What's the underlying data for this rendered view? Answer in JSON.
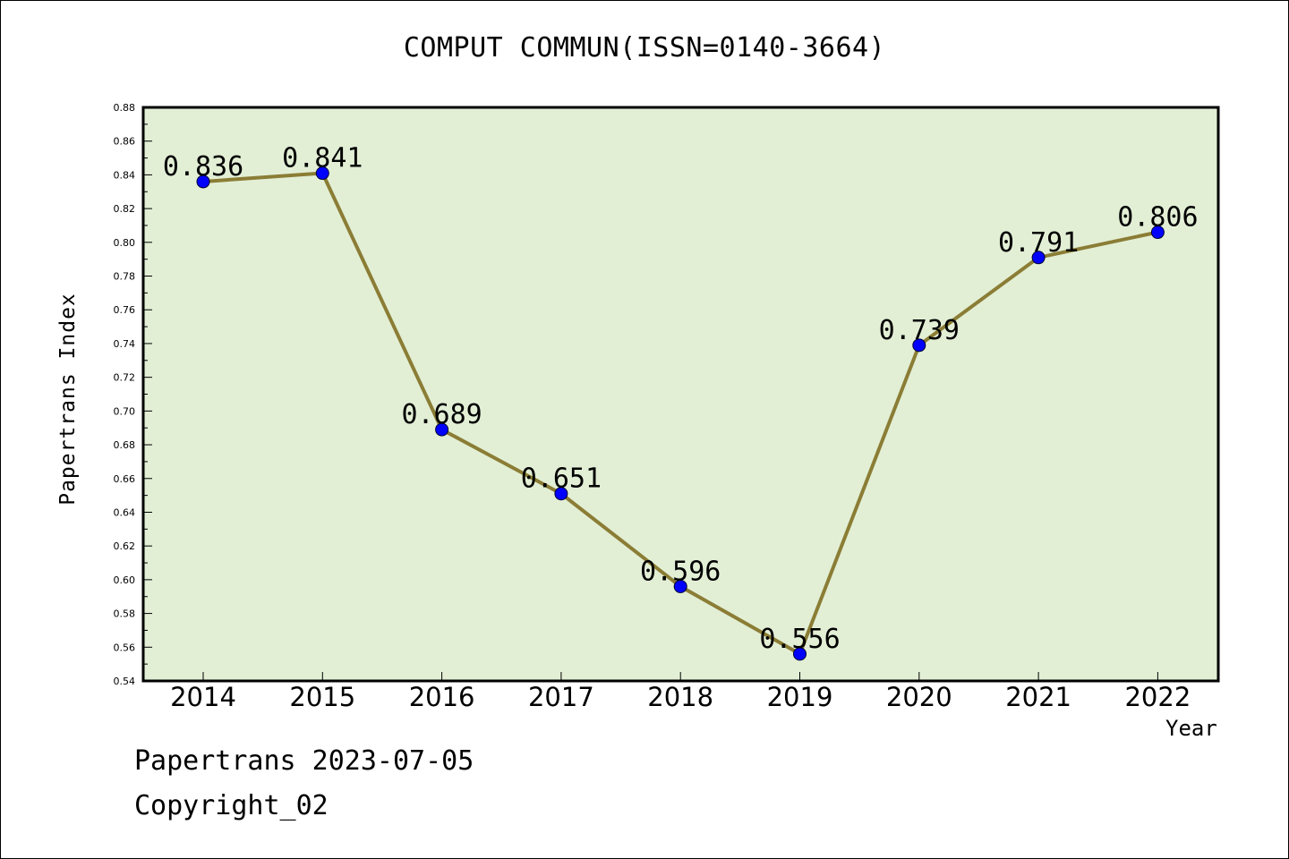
{
  "chart_data": {
    "type": "line",
    "title": "COMPUT COMMUN(ISSN=0140-3664)",
    "xlabel": "Year",
    "ylabel": "Papertrans Index",
    "categories": [
      "2014",
      "2015",
      "2016",
      "2017",
      "2018",
      "2019",
      "2020",
      "2021",
      "2022"
    ],
    "values": [
      0.836,
      0.841,
      0.689,
      0.651,
      0.596,
      0.556,
      0.739,
      0.791,
      0.806
    ],
    "data_labels": [
      "0.836",
      "0.841",
      "0.689",
      "0.651",
      "0.596",
      "0.556",
      "0.739",
      "0.791",
      "0.806"
    ],
    "ylim": [
      0.54,
      0.88
    ],
    "yticks": [
      "0.54",
      "0.56",
      "0.58",
      "0.60",
      "0.62",
      "0.64",
      "0.66",
      "0.68",
      "0.70",
      "0.72",
      "0.74",
      "0.76",
      "0.78",
      "0.80",
      "0.82",
      "0.84",
      "0.86",
      "0.88"
    ],
    "grid": false,
    "legend": "none",
    "colors": {
      "plot_background": "#e2efd5",
      "line": "#8b7d35",
      "marker": "#0000ff"
    }
  },
  "footer": {
    "line1": "Papertrans 2023-07-05",
    "line2": "Copyright_02"
  }
}
